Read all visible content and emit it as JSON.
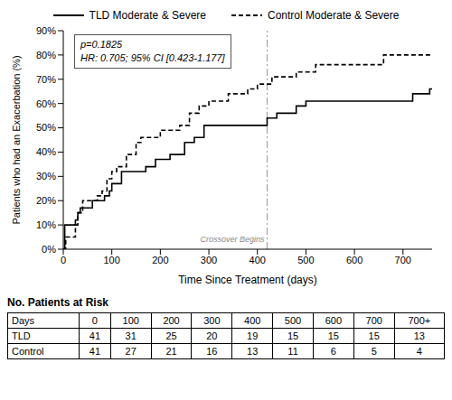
{
  "chart_data": {
    "type": "line",
    "x_label": "Time Since Treatment (days)",
    "y_label": "Patients who had an Exacerbation (%)",
    "xlim": [
      0,
      760
    ],
    "xticks": [
      0,
      100,
      200,
      300,
      400,
      500,
      600,
      700
    ],
    "ylim": [
      0,
      90
    ],
    "yticks": [
      {
        "value": 0,
        "label": "0%"
      },
      {
        "value": 10,
        "label": "10%"
      },
      {
        "value": 20,
        "label": "20%"
      },
      {
        "value": 30,
        "label": "30%"
      },
      {
        "value": 40,
        "label": "40%"
      },
      {
        "value": 50,
        "label": "50%"
      },
      {
        "value": 60,
        "label": "60%"
      },
      {
        "value": 70,
        "label": "70%"
      },
      {
        "value": 80,
        "label": "80%"
      },
      {
        "value": 90,
        "label": "90%"
      }
    ],
    "grid": false,
    "legend": "top",
    "annotations": [
      "p=0.1825",
      "HR: 0.705; 95% CI [0.423-1.177]"
    ],
    "reference_line": {
      "x": 420,
      "label": "Crossover Begins"
    },
    "series": [
      {
        "name": "TLD Moderate & Severe",
        "color": "#000000",
        "line_style": "solid",
        "x": [
          0,
          3,
          25,
          30,
          35,
          60,
          85,
          95,
          100,
          120,
          170,
          190,
          220,
          250,
          270,
          290,
          420,
          440,
          480,
          500,
          720,
          755,
          760
        ],
        "values": [
          0,
          10,
          12,
          15,
          17,
          20,
          22,
          24,
          27,
          32,
          34,
          37,
          39,
          44,
          46,
          51,
          54,
          56,
          59,
          61,
          64,
          66,
          66
        ]
      },
      {
        "name": "Control Moderate & Severe",
        "color": "#000000",
        "line_style": "dashed",
        "x": [
          0,
          5,
          25,
          30,
          40,
          70,
          80,
          90,
          100,
          110,
          130,
          150,
          160,
          200,
          240,
          260,
          280,
          300,
          340,
          380,
          400,
          430,
          480,
          520,
          660,
          760
        ],
        "values": [
          0,
          5,
          10,
          15,
          20,
          22,
          24,
          29,
          32,
          34,
          39,
          44,
          46,
          49,
          51,
          56,
          59,
          61,
          64,
          66,
          68,
          71,
          73,
          76,
          80,
          80
        ]
      }
    ]
  },
  "table": {
    "title": "No. Patients at Risk",
    "header": [
      "Days",
      "0",
      "100",
      "200",
      "300",
      "400",
      "500",
      "600",
      "700",
      "700+"
    ],
    "rows": [
      [
        "TLD",
        41,
        31,
        25,
        20,
        19,
        15,
        15,
        15,
        13
      ],
      [
        "Control",
        41,
        27,
        21,
        16,
        13,
        11,
        6,
        5,
        4
      ]
    ]
  }
}
